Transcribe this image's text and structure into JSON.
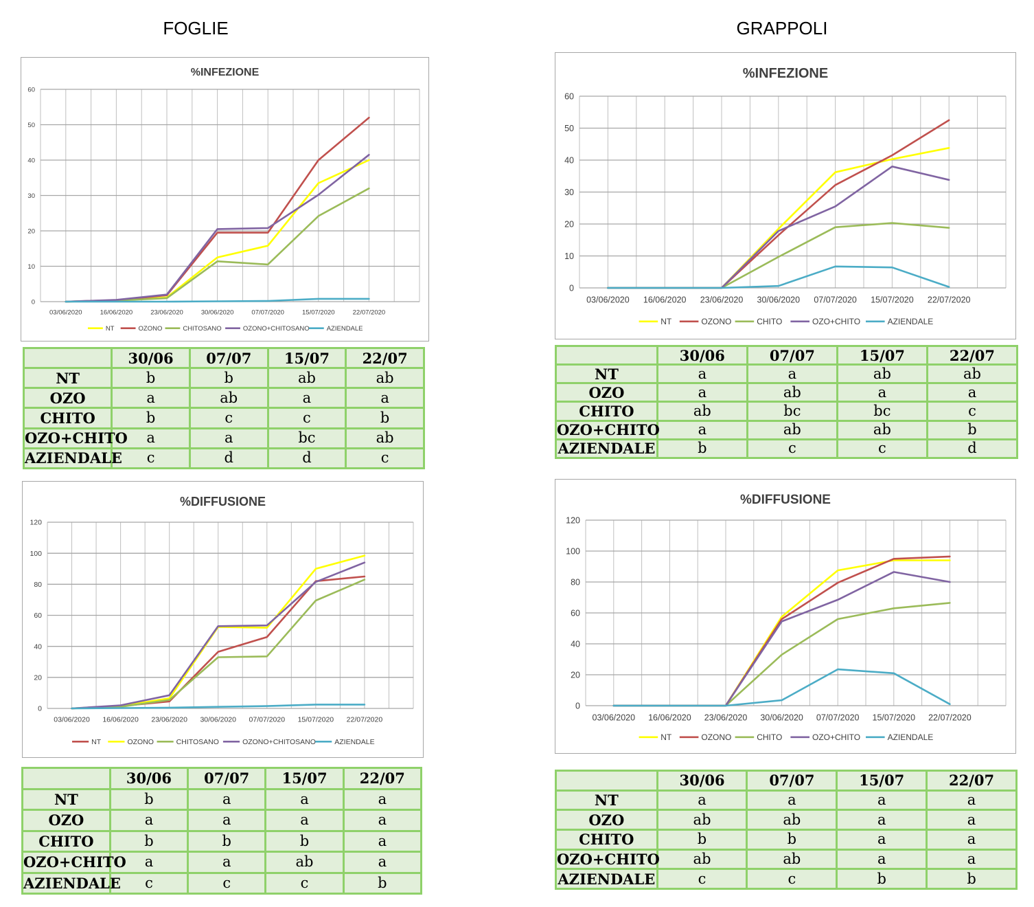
{
  "columns": [
    "FOGLIE",
    "GRAPPOLI"
  ],
  "charts": [
    {
      "id": "foglie-infezione",
      "type": "line",
      "title": "%INFEZIONE",
      "categories": [
        "03/06/2020",
        "16/06/2020",
        "23/06/2020",
        "30/06/2020",
        "07/07/2020",
        "15/07/2020",
        "22/07/2020"
      ],
      "ylim": [
        0,
        60
      ],
      "ystep": 10,
      "grid": true,
      "legend": "bottom",
      "series": [
        {
          "name": "NT",
          "color": "#ffff00",
          "values": [
            0,
            0.3,
            1.2,
            12.5,
            15.8,
            33.5,
            40
          ]
        },
        {
          "name": "OZONO",
          "color": "#c0504d",
          "values": [
            0,
            0.4,
            1.8,
            19.5,
            19.5,
            40,
            52
          ]
        },
        {
          "name": "CHITOSANO",
          "color": "#9bbb59",
          "values": [
            0,
            0.3,
            1.0,
            11.4,
            10.5,
            24.2,
            32
          ]
        },
        {
          "name": "OZONO+CHITOSANO",
          "color": "#8064a2",
          "values": [
            0,
            0.5,
            2.0,
            20.5,
            20.8,
            30.2,
            41.5
          ]
        },
        {
          "name": "AZIENDALE",
          "color": "#4bacc6",
          "values": [
            0,
            0,
            0,
            0.1,
            0.2,
            0.8,
            0.8
          ]
        }
      ]
    },
    {
      "id": "grappoli-infezione",
      "type": "line",
      "title": "%INFEZIONE",
      "categories": [
        "03/06/2020",
        "16/06/2020",
        "23/06/2020",
        "30/06/2020",
        "07/07/2020",
        "15/07/2020",
        "22/07/2020"
      ],
      "ylim": [
        0,
        60
      ],
      "ystep": 10,
      "grid": true,
      "legend": "bottom",
      "series": [
        {
          "name": "NT",
          "color": "#ffff00",
          "values": [
            0,
            0,
            0,
            18.5,
            36.2,
            40.3,
            43.8
          ]
        },
        {
          "name": "OZONO",
          "color": "#c0504d",
          "values": [
            0,
            0,
            0,
            16.5,
            32.2,
            41.5,
            52.5
          ]
        },
        {
          "name": "CHITO",
          "color": "#9bbb59",
          "values": [
            0,
            0,
            0,
            9.7,
            19.0,
            20.3,
            18.8
          ]
        },
        {
          "name": "OZO+CHITO",
          "color": "#8064a2",
          "values": [
            0,
            0,
            0,
            17.8,
            25.5,
            38.0,
            33.8
          ]
        },
        {
          "name": "AZIENDALE",
          "color": "#4bacc6",
          "values": [
            0,
            0,
            0,
            0.6,
            6.7,
            6.4,
            0.3
          ]
        }
      ]
    },
    {
      "id": "foglie-diffusione",
      "type": "line",
      "title": "%DIFFUSIONE",
      "categories": [
        "03/06/2020",
        "16/06/2020",
        "23/06/2020",
        "30/06/2020",
        "07/07/2020",
        "15/07/2020",
        "22/07/2020"
      ],
      "ylim": [
        0,
        120
      ],
      "ystep": 20,
      "grid": true,
      "legend": "bottom",
      "series": [
        {
          "name": "NT",
          "color": "#c0504d",
          "values": [
            0,
            1.5,
            4.5,
            36.5,
            46,
            82,
            85
          ]
        },
        {
          "name": "OZONO",
          "color": "#ffff00",
          "values": [
            0,
            1.5,
            6.5,
            52.5,
            52,
            90,
            98.5
          ]
        },
        {
          "name": "CHITOSANO",
          "color": "#9bbb59",
          "values": [
            0,
            1.0,
            5.5,
            33,
            33.5,
            69.5,
            83
          ]
        },
        {
          "name": "OZONO+CHITOSANO",
          "color": "#8064a2",
          "values": [
            0,
            2.0,
            8.5,
            53,
            53.5,
            81.5,
            94
          ]
        },
        {
          "name": "AZIENDALE",
          "color": "#4bacc6",
          "values": [
            0,
            0.2,
            0.5,
            1.0,
            1.5,
            2.5,
            2.5
          ]
        }
      ]
    },
    {
      "id": "grappoli-diffusione",
      "type": "line",
      "title": "%DIFFUSIONE",
      "categories": [
        "03/06/2020",
        "16/06/2020",
        "23/06/2020",
        "30/06/2020",
        "07/07/2020",
        "15/07/2020",
        "22/07/2020"
      ],
      "ylim": [
        0,
        120
      ],
      "ystep": 20,
      "grid": true,
      "legend": "bottom",
      "series": [
        {
          "name": "NT",
          "color": "#ffff00",
          "values": [
            0,
            0,
            0,
            57.5,
            87.5,
            94,
            94
          ]
        },
        {
          "name": "OZONO",
          "color": "#c0504d",
          "values": [
            0,
            0,
            0,
            56,
            79.5,
            95,
            96.5
          ]
        },
        {
          "name": "CHITO",
          "color": "#9bbb59",
          "values": [
            0,
            0,
            0,
            33,
            56,
            63,
            66.5
          ]
        },
        {
          "name": "OZO+CHITO",
          "color": "#8064a2",
          "values": [
            0,
            0,
            0,
            54.5,
            68.5,
            86.5,
            80
          ]
        },
        {
          "name": "AZIENDALE",
          "color": "#4bacc6",
          "values": [
            0,
            0,
            0,
            3.5,
            23.5,
            21,
            1
          ]
        }
      ]
    }
  ],
  "tables": [
    {
      "id": "foglie-infezione-table",
      "header": [
        "",
        "30/06",
        "07/07",
        "15/07",
        "22/07"
      ],
      "rows": [
        [
          "NT",
          "b",
          "b",
          "ab",
          "ab"
        ],
        [
          "OZO",
          "a",
          "ab",
          "a",
          "a"
        ],
        [
          "CHITO",
          "b",
          "c",
          "c",
          "b"
        ],
        [
          "OZO+CHITO",
          "a",
          "a",
          "bc",
          "ab"
        ],
        [
          "AZIENDALE",
          "c",
          "d",
          "d",
          "c"
        ]
      ]
    },
    {
      "id": "grappoli-infezione-table",
      "header": [
        "",
        "30/06",
        "07/07",
        "15/07",
        "22/07"
      ],
      "rows": [
        [
          "NT",
          "a",
          "a",
          "ab",
          "ab"
        ],
        [
          "OZO",
          "a",
          "ab",
          "a",
          "a"
        ],
        [
          "CHITO",
          "ab",
          "bc",
          "bc",
          "c"
        ],
        [
          "OZO+CHITO",
          "a",
          "ab",
          "ab",
          "b"
        ],
        [
          "AZIENDALE",
          "b",
          "c",
          "c",
          "d"
        ]
      ]
    },
    {
      "id": "foglie-diffusione-table",
      "header": [
        "",
        "30/06",
        "07/07",
        "15/07",
        "22/07"
      ],
      "rows": [
        [
          "NT",
          "b",
          "a",
          "a",
          "a"
        ],
        [
          "OZO",
          "a",
          "a",
          "a",
          "a"
        ],
        [
          "CHITO",
          "b",
          "b",
          "b",
          "a"
        ],
        [
          "OZO+CHITO",
          "a",
          "a",
          "ab",
          "a"
        ],
        [
          "AZIENDALE",
          "c",
          "c",
          "c",
          "b"
        ]
      ]
    },
    {
      "id": "grappoli-diffusione-table",
      "header": [
        "",
        "30/06",
        "07/07",
        "15/07",
        "22/07"
      ],
      "rows": [
        [
          "NT",
          "a",
          "a",
          "a",
          "a"
        ],
        [
          "OZO",
          "ab",
          "ab",
          "a",
          "a"
        ],
        [
          "CHITO",
          "b",
          "b",
          "a",
          "a"
        ],
        [
          "OZO+CHITO",
          "ab",
          "ab",
          "a",
          "a"
        ],
        [
          "AZIENDALE",
          "c",
          "c",
          "b",
          "b"
        ]
      ]
    }
  ]
}
